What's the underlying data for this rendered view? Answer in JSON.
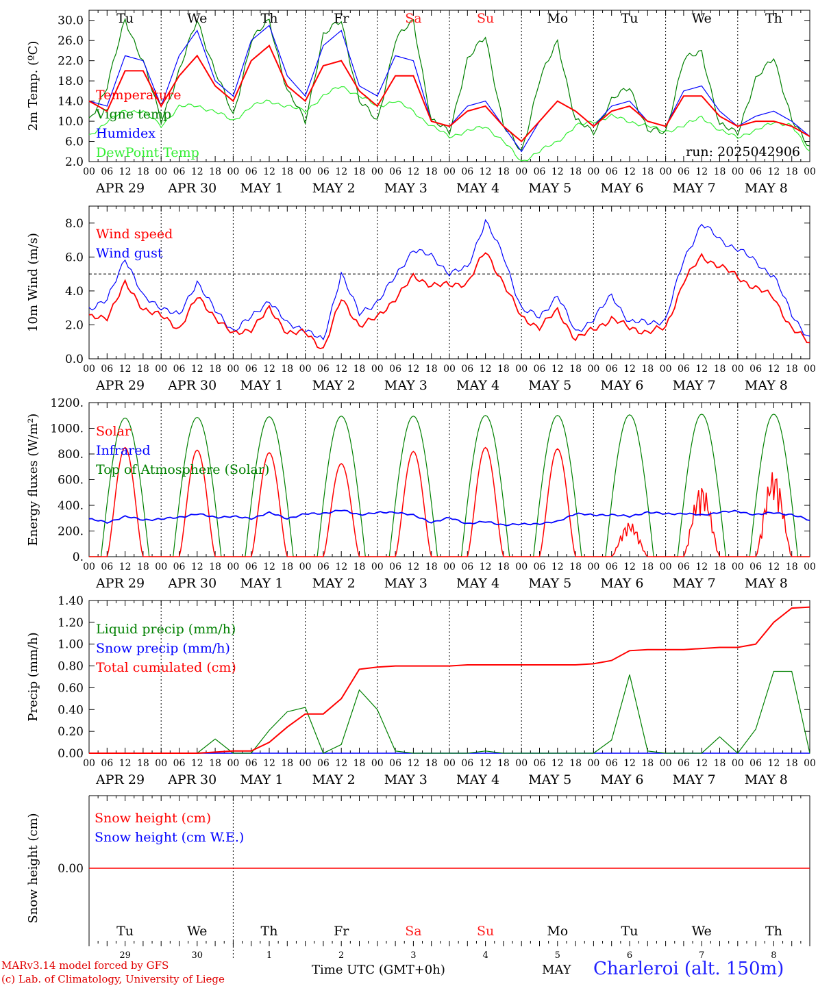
{
  "run_label": "run: 2025042906",
  "footer": {
    "model": "MARv3.14 model forced by GFS",
    "lab": "(c) Lab. of Climatology, University of Liege",
    "time_axis": "Time UTC (GMT+0h)",
    "month": "MAY",
    "station": "Charleroi (alt. 150m)"
  },
  "days": {
    "weekdays": [
      "Tu",
      "We",
      "Th",
      "Fr",
      "Sa",
      "Su",
      "Mo",
      "Tu",
      "We",
      "Th"
    ],
    "weekday_colors": [
      "#000000",
      "#000000",
      "#000000",
      "#000000",
      "#ff2020",
      "#ff2020",
      "#000000",
      "#000000",
      "#000000",
      "#000000"
    ],
    "date_labels": [
      "APR 29",
      "APR 30",
      "MAY  1",
      "MAY  2",
      "MAY  3",
      "MAY  4",
      "MAY  5",
      "MAY  6",
      "MAY  7",
      "MAY  8"
    ],
    "day_numbers": [
      "29",
      "30",
      "1",
      "2",
      "3",
      "4",
      "5",
      "6",
      "7",
      "8"
    ],
    "hour_ticks": [
      "00",
      "06",
      "12",
      "18"
    ],
    "final_tick": "00"
  },
  "colors": {
    "temperature": "#ff0000",
    "vigne": "#008000",
    "humidex": "#0000ff",
    "dewpoint": "#33ee33",
    "wind_speed": "#ff0000",
    "wind_gust": "#0000ff",
    "solar": "#ff0000",
    "infrared": "#0000ff",
    "toa": "#008000",
    "liquid": "#008000",
    "snow": "#0000ff",
    "cumul": "#ff0000"
  },
  "chart_data": [
    {
      "type": "line",
      "ylabel": "2m Temp. (ºC)",
      "ylim": [
        2,
        32
      ],
      "yticks": [
        "2.0",
        "6.0",
        "10.0",
        "14.0",
        "18.0",
        "22.0",
        "26.0",
        "30.0"
      ],
      "x_hours": [
        0,
        6,
        12,
        18,
        24,
        30,
        36,
        42,
        48,
        54,
        60,
        66,
        72,
        78,
        84,
        90,
        96,
        102,
        108,
        114,
        120,
        126,
        132,
        138,
        144,
        150,
        156,
        162,
        168,
        174,
        180,
        186,
        192,
        198,
        204,
        210,
        216,
        222,
        228,
        234,
        240
      ],
      "series": [
        {
          "name": "Temperature",
          "key": "temperature",
          "values": [
            14,
            12,
            20,
            20,
            13,
            19,
            23,
            17,
            14,
            22,
            25,
            17,
            14,
            21,
            22,
            16,
            13,
            19,
            19,
            10,
            9,
            12,
            13,
            9,
            6,
            10,
            14,
            12,
            9,
            12,
            13,
            10,
            9,
            15,
            15,
            11,
            9,
            10,
            10,
            9,
            7
          ]
        },
        {
          "name": "Vigne temp",
          "key": "vigne",
          "values": [
            10,
            17,
            30,
            22,
            10,
            20,
            30,
            20,
            11,
            26,
            30,
            16,
            10,
            27,
            30,
            14,
            10,
            26,
            30,
            10,
            8,
            22,
            27,
            9,
            4,
            18,
            26,
            10,
            8,
            14,
            17,
            8,
            8,
            22,
            24,
            9,
            8,
            18,
            23,
            10,
            5
          ]
        },
        {
          "name": "Humidex",
          "key": "humidex",
          "values": [
            14,
            13,
            23,
            22,
            13,
            23,
            28,
            18,
            15,
            26,
            29,
            19,
            15,
            25,
            28,
            17,
            15,
            23,
            22,
            10,
            9,
            13,
            14,
            9,
            4,
            10,
            14,
            12,
            9,
            13,
            14,
            10,
            9,
            16,
            17,
            12,
            9,
            11,
            12,
            10,
            7
          ]
        },
        {
          "name": "DewPoint Temp",
          "key": "dewpoint",
          "values": [
            7,
            10,
            12,
            12,
            9,
            13,
            13,
            12,
            10,
            13,
            14,
            13,
            12,
            15,
            17,
            15,
            13,
            14,
            12,
            9,
            7,
            8,
            9,
            6,
            2,
            4,
            6,
            9,
            10,
            11,
            10,
            9,
            8,
            9,
            11,
            8,
            7,
            8,
            10,
            9,
            4
          ]
        }
      ]
    },
    {
      "type": "line",
      "ylabel": "10m Wind (m/s)",
      "ylim": [
        0,
        9
      ],
      "yticks": [
        "0.0",
        "2.0",
        "4.0",
        "6.0",
        "8.0"
      ],
      "x_hours": [
        0,
        6,
        12,
        18,
        24,
        30,
        36,
        42,
        48,
        54,
        60,
        66,
        72,
        78,
        84,
        90,
        96,
        102,
        108,
        114,
        120,
        126,
        132,
        138,
        144,
        150,
        156,
        162,
        168,
        174,
        180,
        186,
        192,
        198,
        204,
        210,
        216,
        222,
        228,
        234,
        240
      ],
      "series": [
        {
          "name": "Wind speed",
          "key": "wind_speed",
          "values": [
            2.4,
            2.5,
            4.4,
            3.0,
            2.5,
            1.8,
            3.6,
            2.5,
            1.4,
            1.8,
            2.9,
            1.6,
            1.5,
            0.6,
            3.5,
            2.0,
            2.4,
            3.6,
            4.8,
            4.4,
            4.3,
            4.5,
            6.3,
            4.5,
            2.4,
            1.9,
            2.8,
            1.2,
            1.7,
            2.4,
            1.8,
            1.6,
            1.8,
            4.6,
            6.0,
            5.5,
            4.8,
            4.2,
            3.6,
            1.8,
            0.9
          ]
        },
        {
          "name": "Wind gust",
          "key": "wind_gust",
          "values": [
            3.0,
            3.4,
            6.0,
            3.6,
            3.1,
            2.5,
            4.6,
            2.8,
            1.7,
            2.4,
            3.5,
            2.0,
            1.8,
            1.0,
            5.1,
            2.6,
            3.4,
            4.8,
            6.5,
            6.0,
            5.1,
            5.3,
            8.2,
            6.0,
            3.0,
            2.4,
            3.8,
            1.5,
            2.4,
            3.7,
            2.2,
            2.1,
            2.3,
            5.8,
            8.0,
            7.0,
            6.5,
            5.7,
            4.9,
            2.6,
            1.2
          ]
        }
      ],
      "dashed_line": 5.0
    },
    {
      "type": "line",
      "ylabel": "Energy fluxes (W/m²)",
      "ylim": [
        0,
        1200
      ],
      "yticks": [
        "0.",
        "200.",
        "400.",
        "600.",
        "800.",
        "1000.",
        "1200."
      ],
      "series": [
        {
          "name": "Solar",
          "key": "solar",
          "daily_peaks": [
            850,
            830,
            810,
            725,
            820,
            850,
            840,
            270,
            560,
            670
          ]
        },
        {
          "name": "Infrared",
          "key": "infrared",
          "values": [
            290,
            270,
            310,
            290,
            290,
            310,
            330,
            310,
            310,
            300,
            340,
            300,
            330,
            340,
            360,
            330,
            340,
            350,
            320,
            270,
            300,
            260,
            270,
            250,
            250,
            260,
            270,
            340,
            320,
            330,
            310,
            350,
            330,
            340,
            320,
            350,
            350,
            330,
            340,
            330,
            280
          ]
        },
        {
          "name": "Top of Atmosphere (Solar)",
          "key": "toa",
          "daily_peaks": [
            1080,
            1085,
            1090,
            1095,
            1095,
            1100,
            1100,
            1105,
            1110,
            1110
          ]
        }
      ]
    },
    {
      "type": "line",
      "ylabel": "Precip (mm/h)",
      "ylim": [
        0,
        1.4
      ],
      "yticks": [
        "0.00",
        "0.20",
        "0.40",
        "0.60",
        "0.80",
        "1.00",
        "1.20",
        "1.40"
      ],
      "series": [
        {
          "name": "Liquid precip (mm/h)",
          "key": "liquid",
          "values": [
            0,
            0,
            0,
            0,
            0,
            0,
            0,
            0.13,
            0,
            0,
            0.21,
            0.38,
            0.42,
            0,
            0.08,
            0.58,
            0.4,
            0.02,
            0,
            0,
            0,
            0,
            0.02,
            0,
            0,
            0,
            0,
            0,
            0,
            0.12,
            0.72,
            0.02,
            0,
            0,
            0,
            0.15,
            0,
            0.22,
            0.75,
            0.75,
            0
          ]
        },
        {
          "name": "Snow precip (mm/h)",
          "key": "snow",
          "values": []
        },
        {
          "name": "Total cumulated (cm)",
          "key": "cumul",
          "values": [
            0,
            0,
            0,
            0,
            0,
            0,
            0,
            0.01,
            0.02,
            0.02,
            0.1,
            0.24,
            0.36,
            0.36,
            0.5,
            0.77,
            0.79,
            0.8,
            0.8,
            0.8,
            0.8,
            0.81,
            0.81,
            0.81,
            0.81,
            0.81,
            0.81,
            0.81,
            0.82,
            0.85,
            0.94,
            0.95,
            0.95,
            0.95,
            0.96,
            0.97,
            0.97,
            1.0,
            1.2,
            1.33,
            1.34
          ]
        }
      ],
      "x_hours_step": 6
    },
    {
      "type": "line",
      "ylabel": "Snow height (cm)",
      "ylim": [
        -1,
        1
      ],
      "yticks": [
        "0.00"
      ],
      "series": [
        {
          "name": "Snow height (cm)",
          "key": "snow_height",
          "values": [
            0,
            0
          ]
        },
        {
          "name": "Snow height (cm W.E.)",
          "key": "snow_we",
          "values": [
            0,
            0
          ]
        }
      ]
    }
  ]
}
